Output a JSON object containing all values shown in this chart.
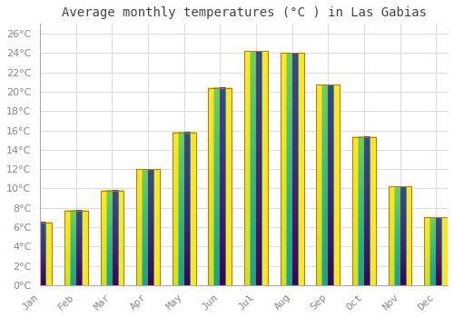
{
  "title": "Average monthly temperatures (°C ) in Las Gabias",
  "months": [
    "Jan",
    "Feb",
    "Mar",
    "Apr",
    "May",
    "Jun",
    "Jul",
    "Aug",
    "Sep",
    "Oct",
    "Nov",
    "Dec"
  ],
  "values": [
    6.5,
    7.7,
    9.8,
    12.0,
    15.8,
    20.4,
    24.2,
    24.0,
    20.7,
    15.3,
    10.2,
    7.0
  ],
  "bar_color_top": "#FFD966",
  "bar_color_bottom": "#F0A020",
  "bar_edge_color": "#C87010",
  "background_color": "#FFFFFF",
  "grid_color": "#DDDDDD",
  "title_fontsize": 10,
  "tick_fontsize": 8,
  "ylim": [
    0,
    27
  ],
  "ytick_step": 2
}
